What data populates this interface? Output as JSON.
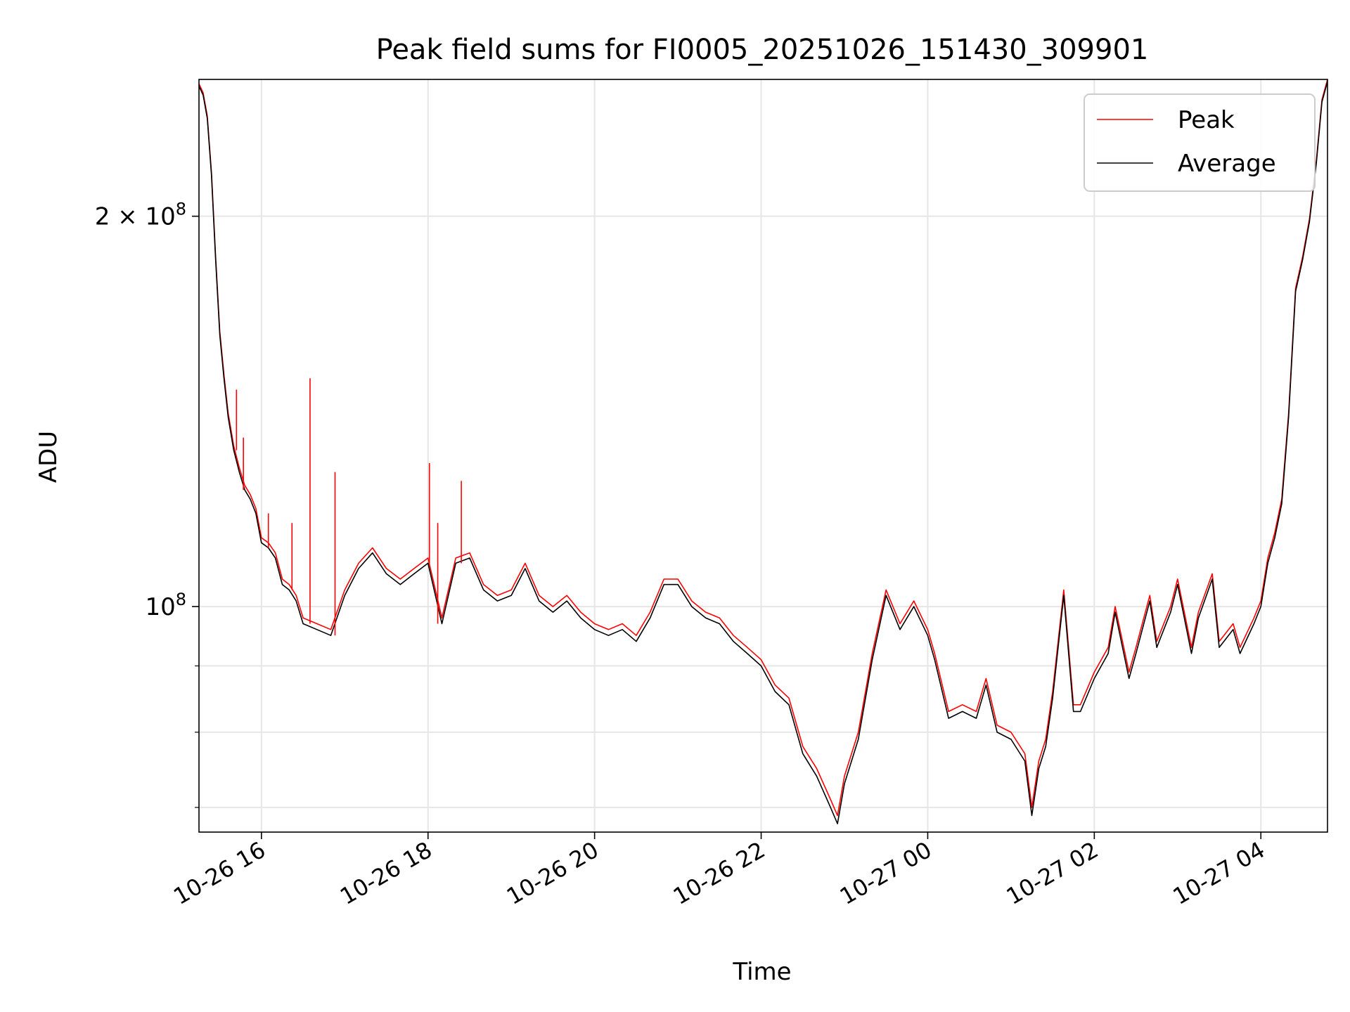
{
  "chart_data": {
    "type": "line",
    "title": "Peak field sums for FI0005_20251026_151430_309901",
    "xlabel": "Time",
    "ylabel": "ADU",
    "x_type": "datetime",
    "xlim": [
      "2025-10-26T15:15",
      "2025-10-27T04:48"
    ],
    "ylim": [
      67000000,
      255000000
    ],
    "yscale": "log",
    "grid": true,
    "legend_position": "top-right",
    "x_ticks": [
      {
        "t": "2025-10-26T16:00",
        "label": "10-26 16"
      },
      {
        "t": "2025-10-26T18:00",
        "label": "10-26 18"
      },
      {
        "t": "2025-10-26T20:00",
        "label": "10-26 20"
      },
      {
        "t": "2025-10-26T22:00",
        "label": "10-26 22"
      },
      {
        "t": "2025-10-27T00:00",
        "label": "10-27 00"
      },
      {
        "t": "2025-10-27T02:00",
        "label": "10-27 02"
      },
      {
        "t": "2025-10-27T04:00",
        "label": "10-27 04"
      }
    ],
    "y_ticks_major": [
      {
        "value": 100000000,
        "base": "10",
        "exp": "8",
        "mantissa": ""
      },
      {
        "value": 200000000,
        "base": "10",
        "exp": "8",
        "mantissa": "2 × "
      }
    ],
    "y_ticks_minor": [
      70000000,
      80000000,
      90000000
    ],
    "series": [
      {
        "name": "Average",
        "color": "#000000",
        "x": [
          "2025-10-26T15:15",
          "2025-10-26T15:18",
          "2025-10-26T15:21",
          "2025-10-26T15:24",
          "2025-10-26T15:27",
          "2025-10-26T15:30",
          "2025-10-26T15:33",
          "2025-10-26T15:36",
          "2025-10-26T15:40",
          "2025-10-26T15:44",
          "2025-10-26T15:48",
          "2025-10-26T15:52",
          "2025-10-26T15:56",
          "2025-10-26T16:00",
          "2025-10-26T16:05",
          "2025-10-26T16:10",
          "2025-10-26T16:15",
          "2025-10-26T16:20",
          "2025-10-26T16:25",
          "2025-10-26T16:30",
          "2025-10-26T16:40",
          "2025-10-26T16:50",
          "2025-10-26T17:00",
          "2025-10-26T17:10",
          "2025-10-26T17:20",
          "2025-10-26T17:30",
          "2025-10-26T17:40",
          "2025-10-26T17:50",
          "2025-10-26T18:00",
          "2025-10-26T18:10",
          "2025-10-26T18:20",
          "2025-10-26T18:30",
          "2025-10-26T18:40",
          "2025-10-26T18:50",
          "2025-10-26T19:00",
          "2025-10-26T19:10",
          "2025-10-26T19:20",
          "2025-10-26T19:30",
          "2025-10-26T19:40",
          "2025-10-26T19:50",
          "2025-10-26T20:00",
          "2025-10-26T20:10",
          "2025-10-26T20:20",
          "2025-10-26T20:30",
          "2025-10-26T20:40",
          "2025-10-26T20:50",
          "2025-10-26T21:00",
          "2025-10-26T21:10",
          "2025-10-26T21:20",
          "2025-10-26T21:30",
          "2025-10-26T21:40",
          "2025-10-26T21:50",
          "2025-10-26T22:00",
          "2025-10-26T22:10",
          "2025-10-26T22:20",
          "2025-10-26T22:30",
          "2025-10-26T22:40",
          "2025-10-26T22:50",
          "2025-10-26T22:55",
          "2025-10-26T23:00",
          "2025-10-26T23:10",
          "2025-10-26T23:20",
          "2025-10-26T23:30",
          "2025-10-26T23:40",
          "2025-10-26T23:50",
          "2025-10-27T00:00",
          "2025-10-27T00:05",
          "2025-10-27T00:15",
          "2025-10-27T00:25",
          "2025-10-27T00:35",
          "2025-10-27T00:42",
          "2025-10-27T00:50",
          "2025-10-27T01:00",
          "2025-10-27T01:10",
          "2025-10-27T01:15",
          "2025-10-27T01:20",
          "2025-10-27T01:25",
          "2025-10-27T01:30",
          "2025-10-27T01:38",
          "2025-10-27T01:45",
          "2025-10-27T01:50",
          "2025-10-27T02:00",
          "2025-10-27T02:10",
          "2025-10-27T02:15",
          "2025-10-27T02:25",
          "2025-10-27T02:30",
          "2025-10-27T02:40",
          "2025-10-27T02:45",
          "2025-10-27T02:55",
          "2025-10-27T03:00",
          "2025-10-27T03:10",
          "2025-10-27T03:15",
          "2025-10-27T03:25",
          "2025-10-27T03:30",
          "2025-10-27T03:40",
          "2025-10-27T03:45",
          "2025-10-27T03:55",
          "2025-10-27T04:00",
          "2025-10-27T04:05",
          "2025-10-27T04:10",
          "2025-10-27T04:15",
          "2025-10-27T04:20",
          "2025-10-27T04:25",
          "2025-10-27T04:30",
          "2025-10-27T04:35",
          "2025-10-27T04:40",
          "2025-10-27T04:44",
          "2025-10-27T04:48"
        ],
        "values": [
          252000000,
          248000000,
          238000000,
          215000000,
          185000000,
          162000000,
          150000000,
          140000000,
          132000000,
          127000000,
          123000000,
          121000000,
          118000000,
          112000000,
          111000000,
          109000000,
          104000000,
          103000000,
          101000000,
          97000000,
          96000000,
          95000000,
          102000000,
          107000000,
          110000000,
          106000000,
          104000000,
          106000000,
          108000000,
          97000000,
          108000000,
          109000000,
          103000000,
          101000000,
          102000000,
          107000000,
          101000000,
          99000000,
          101000000,
          98000000,
          96000000,
          95000000,
          96000000,
          94000000,
          98000000,
          104000000,
          104000000,
          100000000,
          98000000,
          97000000,
          94000000,
          92000000,
          90000000,
          86000000,
          84000000,
          77000000,
          74000000,
          70000000,
          68000000,
          73000000,
          79000000,
          91000000,
          102000000,
          96000000,
          100000000,
          95000000,
          91000000,
          82000000,
          83000000,
          82000000,
          87000000,
          80000000,
          79000000,
          76000000,
          69000000,
          75000000,
          78000000,
          85000000,
          102000000,
          83000000,
          83000000,
          88000000,
          92000000,
          99000000,
          88000000,
          92000000,
          101000000,
          93000000,
          99000000,
          104000000,
          92000000,
          98000000,
          105000000,
          93000000,
          96000000,
          92000000,
          97000000,
          100000000,
          108000000,
          113000000,
          120000000,
          140000000,
          175000000,
          185000000,
          198000000,
          220000000,
          245000000,
          254000000
        ]
      },
      {
        "name": "Peak",
        "color": "#ff0000",
        "x": [
          "2025-10-26T15:15",
          "2025-10-26T15:18",
          "2025-10-26T15:21",
          "2025-10-26T15:24",
          "2025-10-26T15:27",
          "2025-10-26T15:30",
          "2025-10-26T15:33",
          "2025-10-26T15:36",
          "2025-10-26T15:40",
          "2025-10-26T15:44",
          "2025-10-26T15:48",
          "2025-10-26T15:52",
          "2025-10-26T15:56",
          "2025-10-26T16:00",
          "2025-10-26T16:05",
          "2025-10-26T16:10",
          "2025-10-26T16:15",
          "2025-10-26T16:20",
          "2025-10-26T16:25",
          "2025-10-26T16:30",
          "2025-10-26T16:40",
          "2025-10-26T16:50",
          "2025-10-26T17:00",
          "2025-10-26T17:10",
          "2025-10-26T17:20",
          "2025-10-26T17:30",
          "2025-10-26T17:40",
          "2025-10-26T17:50",
          "2025-10-26T18:00",
          "2025-10-26T18:10",
          "2025-10-26T18:20",
          "2025-10-26T18:30",
          "2025-10-26T18:40",
          "2025-10-26T18:50",
          "2025-10-26T19:00",
          "2025-10-26T19:10",
          "2025-10-26T19:20",
          "2025-10-26T19:30",
          "2025-10-26T19:40",
          "2025-10-26T19:50",
          "2025-10-26T20:00",
          "2025-10-26T20:10",
          "2025-10-26T20:20",
          "2025-10-26T20:30",
          "2025-10-26T20:40",
          "2025-10-26T20:50",
          "2025-10-26T21:00",
          "2025-10-26T21:10",
          "2025-10-26T21:20",
          "2025-10-26T21:30",
          "2025-10-26T21:40",
          "2025-10-26T21:50",
          "2025-10-26T22:00",
          "2025-10-26T22:10",
          "2025-10-26T22:20",
          "2025-10-26T22:30",
          "2025-10-26T22:40",
          "2025-10-26T22:50",
          "2025-10-26T22:55",
          "2025-10-26T23:00",
          "2025-10-26T23:10",
          "2025-10-26T23:20",
          "2025-10-26T23:30",
          "2025-10-26T23:40",
          "2025-10-26T23:50",
          "2025-10-27T00:00",
          "2025-10-27T00:05",
          "2025-10-27T00:15",
          "2025-10-27T00:25",
          "2025-10-27T00:35",
          "2025-10-27T00:42",
          "2025-10-27T00:50",
          "2025-10-27T01:00",
          "2025-10-27T01:10",
          "2025-10-27T01:15",
          "2025-10-27T01:20",
          "2025-10-27T01:25",
          "2025-10-27T01:30",
          "2025-10-27T01:38",
          "2025-10-27T01:45",
          "2025-10-27T01:50",
          "2025-10-27T02:00",
          "2025-10-27T02:10",
          "2025-10-27T02:15",
          "2025-10-27T02:25",
          "2025-10-27T02:30",
          "2025-10-27T02:40",
          "2025-10-27T02:45",
          "2025-10-27T02:55",
          "2025-10-27T03:00",
          "2025-10-27T03:10",
          "2025-10-27T03:15",
          "2025-10-27T03:25",
          "2025-10-27T03:30",
          "2025-10-27T03:40",
          "2025-10-27T03:45",
          "2025-10-27T03:55",
          "2025-10-27T04:00",
          "2025-10-27T04:05",
          "2025-10-27T04:10",
          "2025-10-27T04:15",
          "2025-10-27T04:20",
          "2025-10-27T04:25",
          "2025-10-27T04:30",
          "2025-10-27T04:35",
          "2025-10-27T04:40",
          "2025-10-27T04:44",
          "2025-10-27T04:48"
        ],
        "values": [
          253000000,
          249000000,
          239000000,
          216000000,
          186000000,
          163000000,
          151000000,
          141000000,
          133000000,
          128000000,
          124000000,
          122000000,
          119000000,
          113000000,
          112000000,
          110000000,
          105000000,
          104000000,
          102000000,
          98000000,
          97000000,
          96000000,
          103000000,
          108000000,
          111000000,
          107000000,
          105000000,
          107000000,
          109000000,
          98000000,
          109000000,
          110000000,
          104000000,
          102000000,
          103000000,
          108000000,
          102000000,
          100000000,
          102000000,
          99000000,
          97000000,
          96000000,
          97000000,
          95000000,
          99000000,
          105000000,
          105000000,
          101000000,
          99000000,
          98000000,
          95000000,
          93000000,
          91000000,
          87000000,
          85000000,
          78000000,
          75000000,
          71000000,
          69000000,
          74000000,
          80000000,
          92000000,
          103000000,
          97000000,
          101000000,
          96000000,
          92000000,
          83000000,
          84000000,
          83000000,
          88000000,
          81000000,
          80000000,
          77000000,
          70000000,
          76000000,
          79000000,
          86000000,
          103000000,
          84000000,
          84000000,
          89000000,
          93000000,
          100000000,
          89000000,
          93000000,
          102000000,
          94000000,
          100000000,
          105000000,
          93000000,
          99000000,
          106000000,
          94000000,
          97000000,
          93000000,
          98000000,
          101000000,
          109000000,
          114000000,
          121000000,
          141000000,
          176000000,
          186000000,
          199000000,
          221000000,
          246000000,
          255000000
        ]
      }
    ],
    "peak_spikes": [
      {
        "t": "2025-10-26T15:42",
        "value": 147000000
      },
      {
        "t": "2025-10-26T15:47",
        "value": 135000000
      },
      {
        "t": "2025-10-26T16:05",
        "value": 118000000
      },
      {
        "t": "2025-10-26T16:22",
        "value": 116000000
      },
      {
        "t": "2025-10-26T16:35",
        "value": 150000000
      },
      {
        "t": "2025-10-26T16:53",
        "value": 127000000
      },
      {
        "t": "2025-10-26T18:01",
        "value": 129000000
      },
      {
        "t": "2025-10-26T18:07",
        "value": 116000000
      },
      {
        "t": "2025-10-26T18:24",
        "value": 125000000
      }
    ],
    "legend": [
      {
        "label": "Peak",
        "color": "#ff0000"
      },
      {
        "label": "Average",
        "color": "#000000"
      }
    ]
  }
}
